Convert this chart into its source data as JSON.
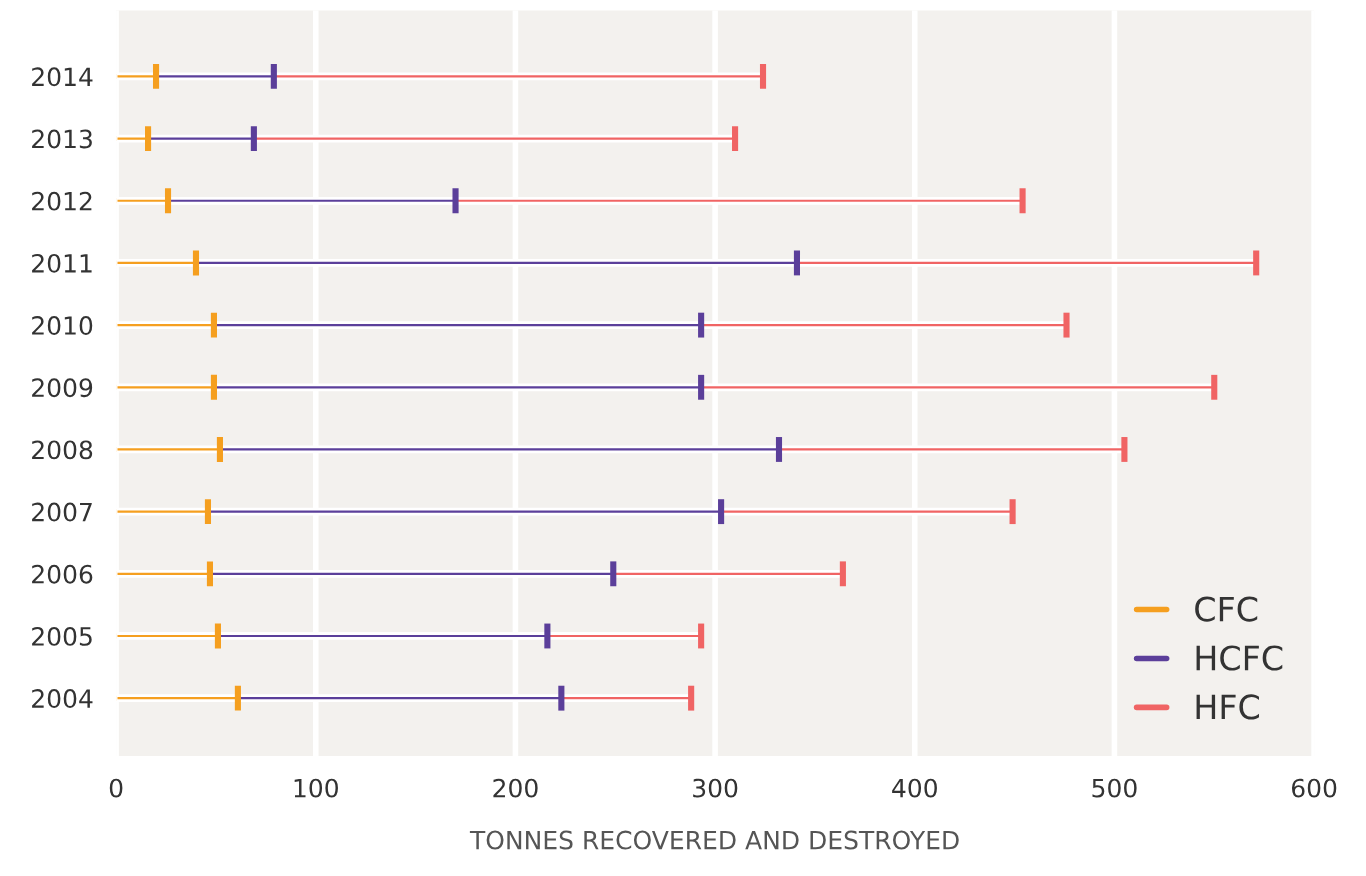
{
  "chart_data": {
    "type": "bar",
    "orientation": "horizontal",
    "stacked": true,
    "xlabel": "TONNES RECOVERED AND DESTROYED",
    "categories": [
      "2014",
      "2013",
      "2012",
      "2011",
      "2010",
      "2009",
      "2008",
      "2007",
      "2006",
      "2005",
      "2004"
    ],
    "series": [
      {
        "name": "CFC",
        "color": "#f59f1f",
        "values": [
          20,
          16,
          26,
          40,
          49,
          49,
          52,
          46,
          47,
          51,
          61
        ]
      },
      {
        "name": "HCFC",
        "color": "#5b3f9a",
        "values": [
          59,
          53,
          144,
          301,
          244,
          244,
          280,
          257,
          202,
          165,
          162
        ]
      },
      {
        "name": "HFC",
        "color": "#f06464",
        "values": [
          245,
          241,
          284,
          230,
          183,
          257,
          173,
          146,
          115,
          77,
          65
        ]
      }
    ],
    "xlim": [
      0,
      600
    ],
    "xticks": [
      0,
      100,
      200,
      300,
      400,
      500,
      600
    ],
    "grid": "x",
    "legend": "bottom right"
  }
}
